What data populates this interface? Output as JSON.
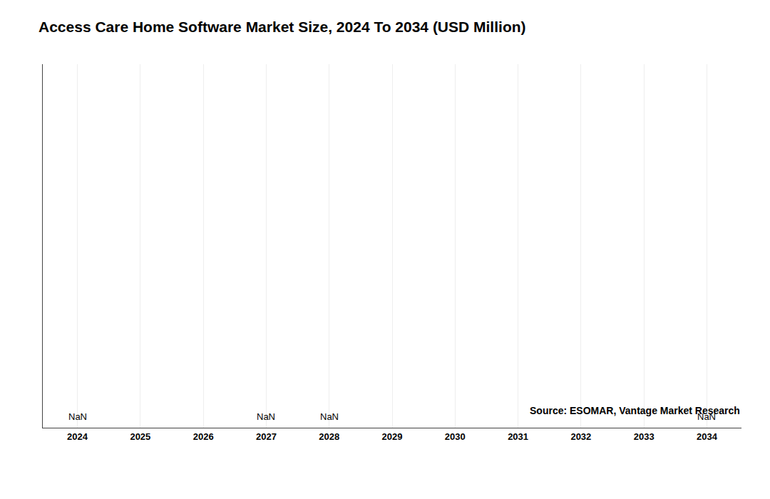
{
  "chart_data": {
    "type": "line",
    "title": "Access Care Home Software Market Size, 2024 To 2034 (USD Million)",
    "source": "Source: ESOMAR, Vantage Market Research",
    "x": [
      2024,
      2025,
      2026,
      2027,
      2028,
      2029,
      2030,
      2031,
      2032,
      2033,
      2034
    ],
    "values": [
      null,
      null,
      null,
      null,
      null,
      null,
      null,
      null,
      null,
      null,
      null
    ],
    "annotations": [
      {
        "x": 2024,
        "text": "NaN"
      },
      {
        "x": 2027,
        "text": "NaN"
      },
      {
        "x": 2028,
        "text": "NaN"
      },
      {
        "x": 2034,
        "text": "NaN"
      }
    ],
    "xlim": [
      2023.45,
      2034.55
    ],
    "xticks": [
      2024,
      2025,
      2026,
      2027,
      2028,
      2029,
      2030,
      2031,
      2032,
      2033,
      2034
    ],
    "ylim": [
      0,
      1
    ],
    "tick_labels": "x",
    "grid": true
  }
}
